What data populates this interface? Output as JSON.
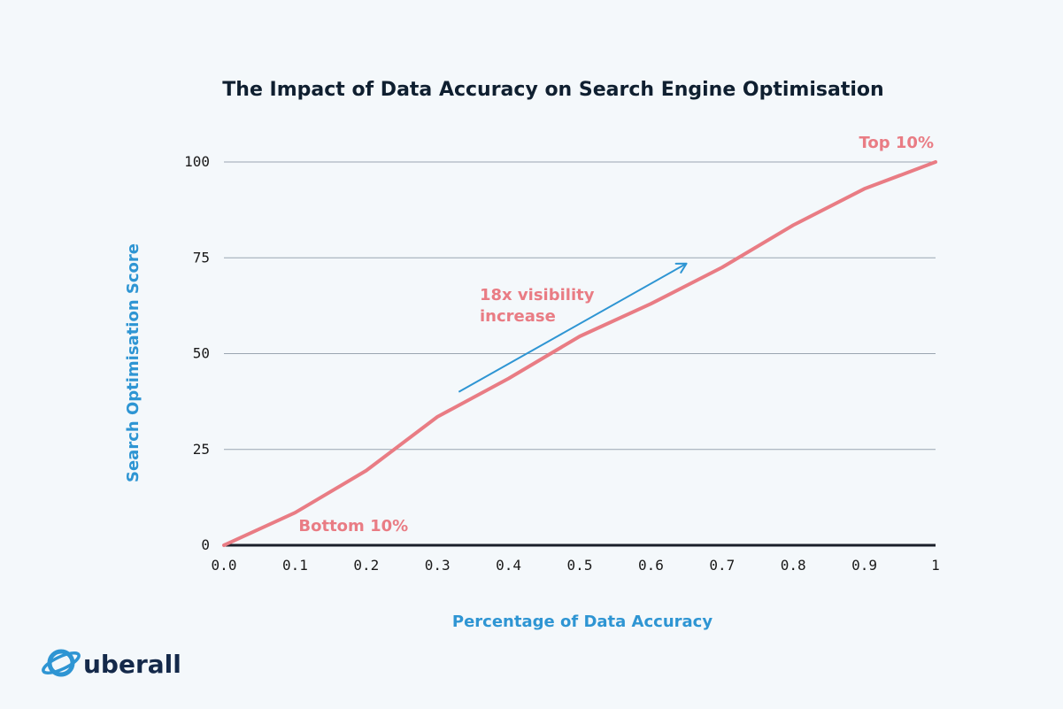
{
  "chart_data": {
    "type": "line",
    "title": "The Impact of Data Accuracy on Search Engine Optimisation",
    "xlabel": "Percentage of Data Accuracy",
    "ylabel": "Search Optimisation Score",
    "xlim": [
      0,
      1
    ],
    "ylim": [
      0,
      100
    ],
    "x_ticks": [
      "0.0",
      "0.1",
      "0.2",
      "0.3",
      "0.4",
      "0.5",
      "0.6",
      "0.7",
      "0.8",
      "0.9",
      "1"
    ],
    "x_tick_values": [
      0,
      0.1,
      0.2,
      0.3,
      0.4,
      0.5,
      0.6,
      0.7,
      0.8,
      0.9,
      1
    ],
    "y_ticks": [
      "0",
      "25",
      "50",
      "75",
      "100"
    ],
    "y_tick_values": [
      0,
      25,
      50,
      75,
      100
    ],
    "grid": "horizontal",
    "series": [
      {
        "x": [
          0.0,
          0.1,
          0.2,
          0.3,
          0.4,
          0.5,
          0.6,
          0.7,
          0.8,
          0.9,
          1.0
        ],
        "y": [
          0,
          8.5,
          19.5,
          33.5,
          43.5,
          54.5,
          63,
          72.5,
          83.5,
          93,
          100
        ]
      }
    ],
    "annotations": {
      "top": {
        "text": "Top 10%",
        "x": 1.0,
        "y": 100
      },
      "bottom": {
        "text": "Bottom 10%",
        "x": 0.1,
        "y": 8.5
      },
      "trend": {
        "line1": "18x visibility",
        "line2": "increase",
        "arrow_from": [
          0.33,
          40
        ],
        "arrow_to": [
          0.65,
          73.5
        ]
      }
    },
    "colors": {
      "series": "#e97c84",
      "axis_label": "#2e95d3",
      "arrow": "#2e95d3",
      "grid": "#9aa5b1",
      "baseline": "#1a1f2a"
    }
  },
  "brand": {
    "name": "uberall",
    "color": "#14294a",
    "icon": "planet-ring-icon",
    "icon_color": "#2e95d3"
  }
}
